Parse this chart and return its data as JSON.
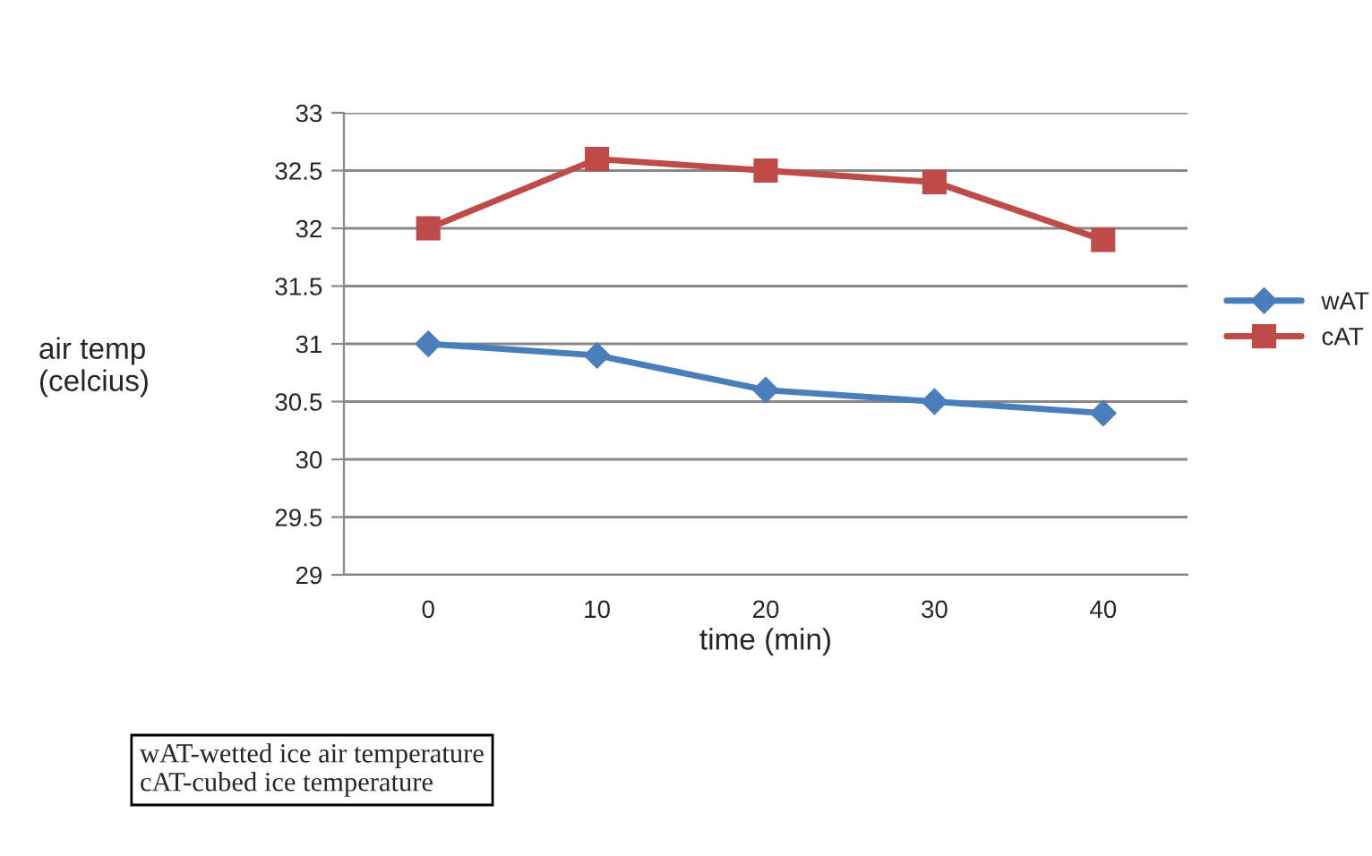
{
  "chart_data": {
    "type": "line",
    "xlabel": "time (min)",
    "ylabel": "air temp\n(celcius)",
    "categories": [
      "0",
      "10",
      "20",
      "30",
      "40"
    ],
    "series": [
      {
        "name": "wAT",
        "color": "#4a7ebb",
        "marker": "diamond",
        "values": [
          31,
          30.9,
          30.6,
          30.5,
          30.4
        ]
      },
      {
        "name": "cAT",
        "color": "#be4b48",
        "marker": "square",
        "values": [
          32,
          32.6,
          32.5,
          32.4,
          31.9
        ]
      }
    ],
    "ylim": [
      29,
      33
    ],
    "yticks": [
      29,
      29.5,
      30,
      30.5,
      31,
      31.5,
      32,
      32.5,
      33
    ],
    "grid": "y",
    "legend": "right",
    "line_style": "solid",
    "annotations": [
      "wAT-wetted ice air temperature",
      "cAT-cubed ice temperature"
    ]
  }
}
